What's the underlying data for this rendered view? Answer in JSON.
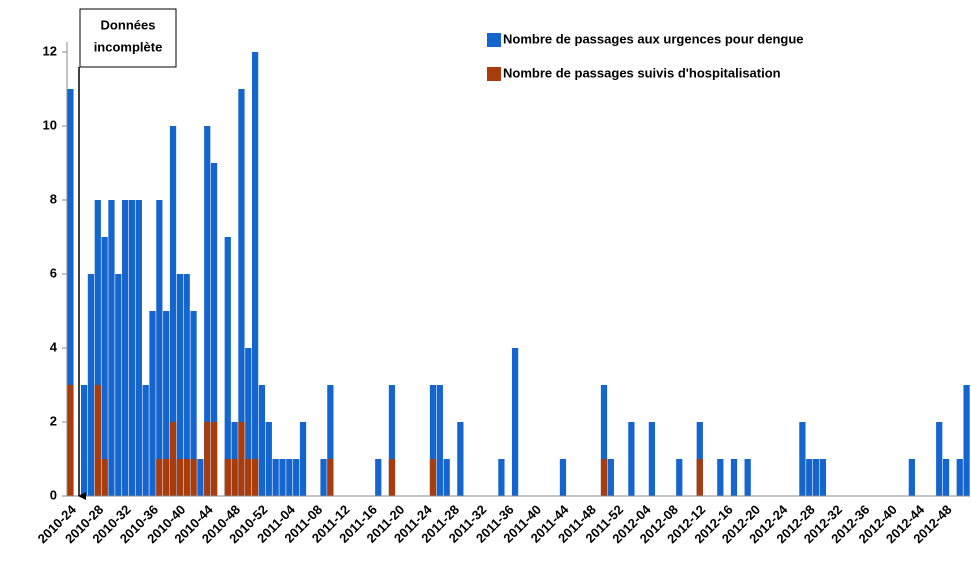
{
  "chart_data": {
    "type": "bar",
    "overlap": true,
    "annotation": [
      "Données",
      "incomplète"
    ],
    "categories": [
      "2010-24",
      null,
      null,
      null,
      "2010-28",
      null,
      null,
      null,
      "2010-32",
      null,
      null,
      null,
      "2010-36",
      null,
      null,
      null,
      "2010-40",
      null,
      null,
      null,
      "2010-44",
      null,
      null,
      null,
      "2010-48",
      null,
      null,
      null,
      "2010-52",
      null,
      null,
      null,
      "2011-04",
      null,
      null,
      null,
      "2011-08",
      null,
      null,
      null,
      "2011-12",
      null,
      null,
      null,
      "2011-16",
      null,
      null,
      null,
      "2011-20",
      null,
      null,
      null,
      "2011-24",
      null,
      null,
      null,
      "2011-28",
      null,
      null,
      null,
      "2011-32",
      null,
      null,
      null,
      "2011-36",
      null,
      null,
      null,
      "2011-40",
      null,
      null,
      null,
      "2011-44",
      null,
      null,
      null,
      "2011-48",
      null,
      null,
      null,
      "2011-52",
      null,
      null,
      null,
      "2012-04",
      null,
      null,
      null,
      "2012-08",
      null,
      null,
      null,
      "2012-12",
      null,
      null,
      null,
      "2012-16",
      null,
      null,
      null,
      "2012-20",
      null,
      null,
      null,
      "2012-24",
      null,
      null,
      null,
      "2012-28",
      null,
      null,
      null,
      "2012-32",
      null,
      null,
      null,
      "2012-36",
      null,
      null,
      null,
      "2012-40",
      null,
      null,
      null,
      "2012-44",
      null,
      null,
      null,
      "2012-48",
      null,
      null,
      null
    ],
    "series": [
      {
        "name": "Nombre de passages aux urgences pour dengue",
        "color": "#1565cf",
        "values": [
          11,
          0,
          3,
          6,
          8,
          7,
          8,
          6,
          8,
          8,
          8,
          3,
          5,
          8,
          5,
          10,
          6,
          6,
          5,
          1,
          10,
          9,
          0,
          7,
          2,
          11,
          4,
          12,
          3,
          2,
          1,
          1,
          1,
          1,
          2,
          0,
          0,
          1,
          3,
          0,
          0,
          0,
          0,
          0,
          0,
          1,
          0,
          3,
          0,
          0,
          0,
          0,
          0,
          3,
          3,
          1,
          0,
          2,
          0,
          0,
          0,
          0,
          0,
          1,
          0,
          4,
          0,
          0,
          0,
          0,
          0,
          0,
          1,
          0,
          0,
          0,
          0,
          0,
          3,
          1,
          0,
          0,
          2,
          0,
          0,
          2,
          0,
          0,
          0,
          1,
          0,
          0,
          2,
          0,
          0,
          1,
          0,
          1,
          0,
          1,
          0,
          0,
          0,
          0,
          0,
          0,
          0,
          2,
          1,
          1,
          1,
          0,
          0,
          0,
          0,
          0,
          0,
          0,
          0,
          0,
          0,
          0,
          0,
          1,
          0,
          0,
          0,
          2,
          1,
          0,
          1,
          3
        ]
      },
      {
        "name": "Nombre de passages suivis d'hospitalisation",
        "color": "#a83c0c",
        "values": [
          3,
          0,
          0,
          0,
          3,
          1,
          0,
          0,
          0,
          0,
          0,
          0,
          0,
          1,
          1,
          2,
          1,
          1,
          1,
          0,
          2,
          2,
          0,
          1,
          1,
          2,
          1,
          1,
          0,
          0,
          0,
          0,
          0,
          0,
          0,
          0,
          0,
          0,
          1,
          0,
          0,
          0,
          0,
          0,
          0,
          0,
          0,
          1,
          0,
          0,
          0,
          0,
          0,
          1,
          0,
          0,
          0,
          0,
          0,
          0,
          0,
          0,
          0,
          0,
          0,
          0,
          0,
          0,
          0,
          0,
          0,
          0,
          0,
          0,
          0,
          0,
          0,
          0,
          1,
          0,
          0,
          0,
          0,
          0,
          0,
          0,
          0,
          0,
          0,
          0,
          0,
          0,
          1,
          0,
          0,
          0,
          0,
          0,
          0,
          0,
          0,
          0,
          0,
          0,
          0,
          0,
          0,
          0,
          0,
          0,
          0,
          0,
          0,
          0,
          0,
          0,
          0,
          0,
          0,
          0,
          0,
          0,
          0,
          0,
          0,
          0,
          0,
          0,
          0,
          0,
          0,
          0
        ]
      }
    ],
    "ylim": [
      0,
      12
    ],
    "yticks": [
      0,
      2,
      4,
      6,
      8,
      10,
      12
    ],
    "grid": false,
    "legend": "top-right"
  }
}
